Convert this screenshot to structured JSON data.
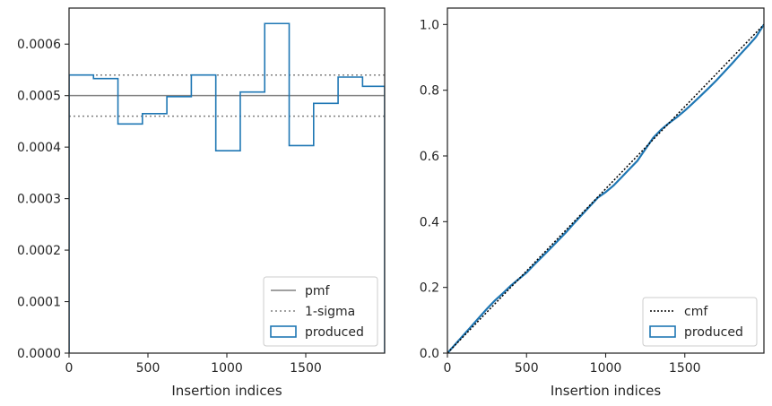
{
  "chart_data": [
    {
      "type": "step-histogram",
      "xlabel": "Insertion indices",
      "ylabel": "",
      "xlim": [
        0,
        2000
      ],
      "ylim": [
        0,
        0.00067
      ],
      "xticks": [
        0,
        500,
        1000,
        1500
      ],
      "yticks": [
        0.0,
        0.0001,
        0.0002,
        0.0003,
        0.0004,
        0.0005,
        0.0006
      ],
      "xtick_labels": [
        "0",
        "500",
        "1000",
        "1500"
      ],
      "ytick_labels": [
        "0.0000",
        "0.0001",
        "0.0002",
        "0.0003",
        "0.0004",
        "0.0005",
        "0.0006"
      ],
      "bin_edges": [
        0,
        155,
        310,
        465,
        620,
        775,
        930,
        1085,
        1240,
        1395,
        1550,
        1705,
        1860,
        2000
      ],
      "series": [
        {
          "name": "produced",
          "color": "#1f77b4",
          "values": [
            0.00054,
            0.000533,
            0.000445,
            0.000465,
            0.000498,
            0.00054,
            0.000393,
            0.000507,
            0.00064,
            0.000403,
            0.000485,
            0.000536,
            0.000518
          ]
        }
      ],
      "reference_lines": [
        {
          "name": "pmf",
          "y": 0.0005,
          "style": "solid",
          "color": "#808080"
        },
        {
          "name": "1-sigma",
          "y": 0.00054,
          "style": "dotted",
          "color": "#808080"
        },
        {
          "name": "1-sigma",
          "y": 0.00046,
          "style": "dotted",
          "color": "#808080"
        }
      ],
      "legend": {
        "placement": "lower-right",
        "entries": [
          "pmf",
          "1-sigma",
          "produced"
        ]
      }
    },
    {
      "type": "line",
      "xlabel": "Insertion indices",
      "ylabel": "",
      "xlim": [
        0,
        2000
      ],
      "ylim": [
        0,
        1.05
      ],
      "xticks": [
        0,
        500,
        1000,
        1500
      ],
      "yticks": [
        0.0,
        0.2,
        0.4,
        0.6,
        0.8,
        1.0
      ],
      "xtick_labels": [
        "0",
        "500",
        "1000",
        "1500"
      ],
      "ytick_labels": [
        "0.0",
        "0.2",
        "0.4",
        "0.6",
        "0.8",
        "1.0"
      ],
      "series": [
        {
          "name": "cmf",
          "style": "dotted",
          "color": "#000000",
          "x": [
            0,
            2000
          ],
          "y": [
            0,
            1.0
          ]
        },
        {
          "name": "produced",
          "style": "solid",
          "color": "#1f77b4",
          "x": [
            0,
            50,
            100,
            150,
            200,
            250,
            300,
            350,
            400,
            450,
            500,
            550,
            600,
            650,
            700,
            750,
            800,
            850,
            900,
            950,
            1000,
            1050,
            1100,
            1150,
            1200,
            1250,
            1300,
            1350,
            1400,
            1450,
            1500,
            1550,
            1600,
            1650,
            1700,
            1750,
            1800,
            1850,
            1900,
            1950,
            2000
          ],
          "y": [
            0,
            0.027,
            0.054,
            0.081,
            0.108,
            0.135,
            0.16,
            0.182,
            0.205,
            0.225,
            0.245,
            0.27,
            0.294,
            0.318,
            0.343,
            0.368,
            0.395,
            0.421,
            0.447,
            0.473,
            0.49,
            0.51,
            0.535,
            0.56,
            0.585,
            0.62,
            0.655,
            0.68,
            0.7,
            0.718,
            0.738,
            0.76,
            0.783,
            0.806,
            0.83,
            0.856,
            0.882,
            0.909,
            0.935,
            0.962,
            1.0
          ]
        }
      ],
      "legend": {
        "placement": "lower-right",
        "entries": [
          "cmf",
          "produced"
        ]
      }
    }
  ]
}
